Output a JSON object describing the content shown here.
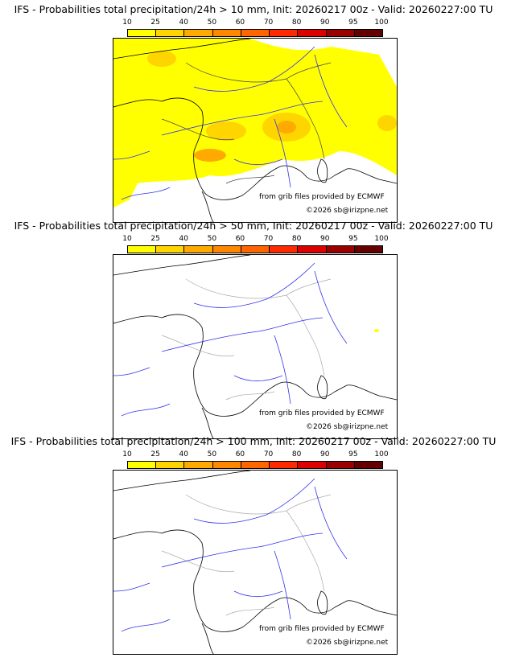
{
  "colorbar": {
    "ticks": [
      "10",
      "25",
      "40",
      "50",
      "60",
      "70",
      "80",
      "90",
      "95",
      "100"
    ],
    "colors": [
      "#ffff00",
      "#ffd500",
      "#ffaa00",
      "#ff8800",
      "#ff6600",
      "#ff2a00",
      "#dd0000",
      "#9a0000",
      "#640000"
    ]
  },
  "panels": [
    {
      "title": "IFS - Probabilities total precipitation/24h > 10 mm, Init: 20260217 00z - Valid: 20260227:00 TU",
      "has_precip": true
    },
    {
      "title": "IFS - Probabilities total precipitation/24h > 50 mm, Init: 20260217 00z - Valid: 20260227:00 TU",
      "has_precip": false
    },
    {
      "title": "IFS - Probabilities total precipitation/24h > 100 mm, Init: 20260217 00z - Valid: 20260227:00 TU",
      "has_precip": false
    }
  ],
  "credits": {
    "source": "from grib files provided by ECMWF",
    "copyright": "©2026 sb@irizpne.net"
  }
}
